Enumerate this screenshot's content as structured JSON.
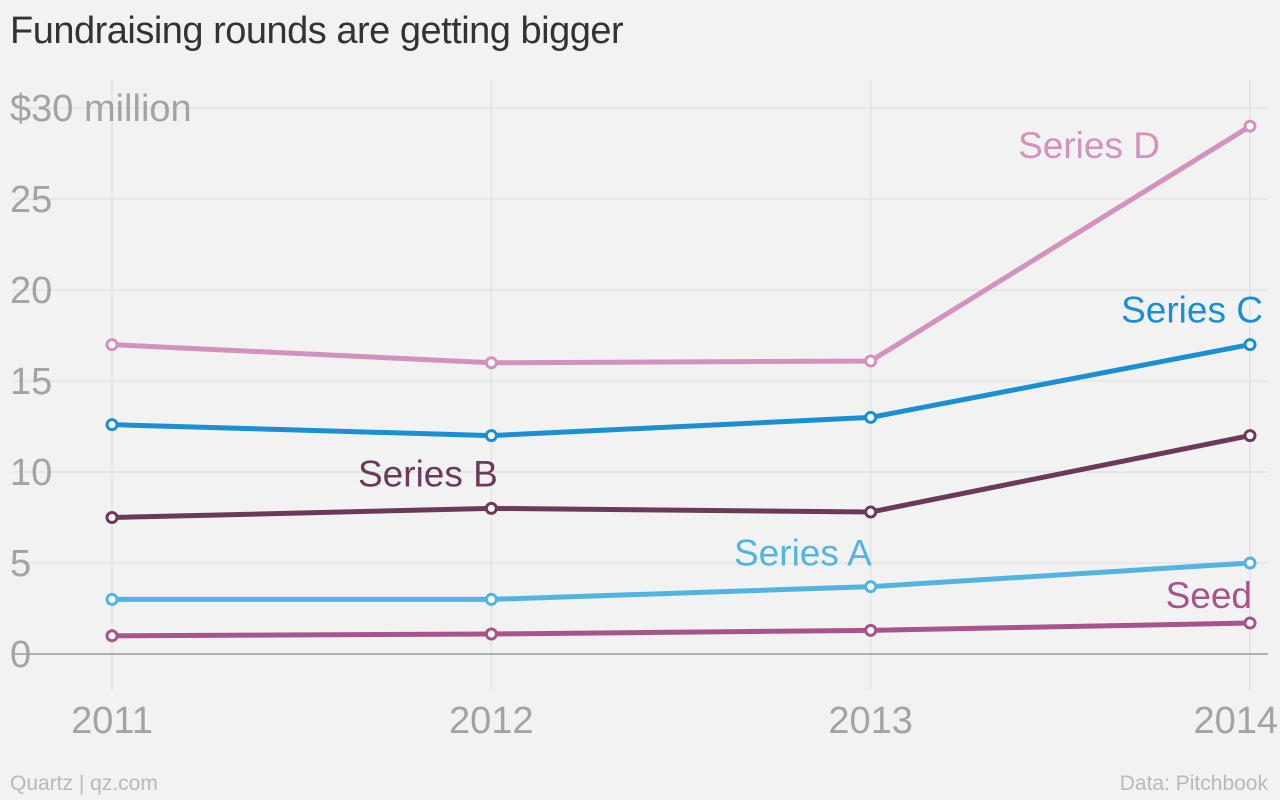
{
  "chart_data": {
    "type": "line",
    "title": "Fundraising rounds are getting bigger",
    "x": [
      "2011",
      "2012",
      "2013",
      "2014"
    ],
    "y_ticks": [
      {
        "value": 0,
        "label": "0"
      },
      {
        "value": 5,
        "label": "5"
      },
      {
        "value": 10,
        "label": "10"
      },
      {
        "value": 15,
        "label": "15"
      },
      {
        "value": 20,
        "label": "20"
      },
      {
        "value": 25,
        "label": "25"
      },
      {
        "value": 30,
        "label": "$30 million"
      }
    ],
    "ylim": [
      0,
      30
    ],
    "grid": true,
    "series": [
      {
        "name": "Series D",
        "color": "#d292bd",
        "values": [
          17,
          16,
          16.1,
          29
        ],
        "label_anchor": "upper-left of 2014 point"
      },
      {
        "name": "Series C",
        "color": "#1a8fd4",
        "values": [
          12.6,
          12,
          13,
          17
        ],
        "label_anchor": "above 2014 point"
      },
      {
        "name": "Series B",
        "color": "#6b3a5b",
        "values": [
          7.5,
          8,
          7.8,
          12
        ],
        "label_anchor": "above 2012 point"
      },
      {
        "name": "Series A",
        "color": "#53b4e4",
        "values": [
          3,
          3,
          3.7,
          5
        ],
        "label_anchor": "above segment 2013-2014"
      },
      {
        "name": "Seed",
        "color": "#a8548c",
        "values": [
          1,
          1.1,
          1.3,
          1.7
        ],
        "label_anchor": "above 2014 point"
      }
    ]
  },
  "footer": {
    "source_left": "Quartz | qz.com",
    "source_right": "Data: Pitchbook"
  }
}
